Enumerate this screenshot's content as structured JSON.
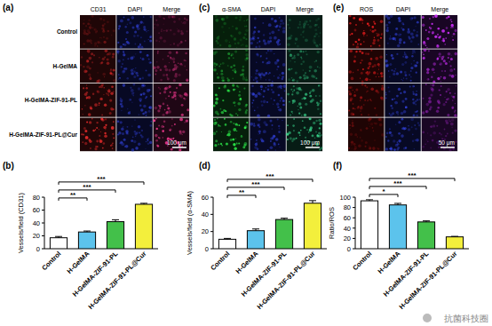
{
  "figure_panels": [
    {
      "label": "(a)",
      "columns": [
        "CD31",
        "DAPI",
        "Merge"
      ],
      "scale_bar": "100 μm"
    },
    {
      "label": "(c)",
      "columns": [
        "α-SMA",
        "DAPI",
        "Merge"
      ],
      "scale_bar": "100 μm"
    },
    {
      "label": "(e)",
      "columns": [
        "ROS",
        "DAPI",
        "Merge"
      ],
      "scale_bar": "50 μm"
    }
  ],
  "row_labels": [
    "Control",
    "H-GelMA",
    "H-GelMA-ZIF-91-PL",
    "H-GelMA-ZIF-91-PL@Cur"
  ],
  "watermark": "抗菌科技圈",
  "chart_data": [
    {
      "title": "(b)",
      "type": "bar",
      "y_label": "Vessels/field (CD31)",
      "categories": [
        "Control",
        "H-GelMA",
        "H-GelMA-ZIF-91-PL",
        "H-GelMA-ZIF-91-PL@Cur"
      ],
      "values": [
        17,
        26,
        42,
        69
      ],
      "errors": [
        2,
        1.5,
        3,
        1.5
      ],
      "colors": [
        "#ffffff",
        "#5cc3ec",
        "#43c04a",
        "#f3ef3c"
      ],
      "ylim": [
        0,
        80
      ],
      "yticks": [
        0,
        20,
        40,
        60,
        80
      ],
      "significance": [
        {
          "groups": [
            "Control",
            "H-GelMA"
          ],
          "label": "**"
        },
        {
          "groups": [
            "Control",
            "H-GelMA-ZIF-91-PL"
          ],
          "label": "***"
        },
        {
          "groups": [
            "Control",
            "H-GelMA-ZIF-91-PL@Cur"
          ],
          "label": "***"
        }
      ]
    },
    {
      "title": "(d)",
      "type": "bar",
      "y_label": "Vessels/field (α-SMA)",
      "categories": [
        "Control",
        "H-GelMA",
        "H-GelMA-ZIF-91-PL",
        "H-GelMA-ZIF-91-PL@Cur"
      ],
      "values": [
        11,
        21,
        34,
        53
      ],
      "errors": [
        1,
        2,
        1.5,
        3
      ],
      "colors": [
        "#ffffff",
        "#5cc3ec",
        "#43c04a",
        "#f3ef3c"
      ],
      "ylim": [
        0,
        60
      ],
      "yticks": [
        0,
        20,
        40,
        60
      ],
      "significance": [
        {
          "groups": [
            "Control",
            "H-GelMA"
          ],
          "label": "**"
        },
        {
          "groups": [
            "Control",
            "H-GelMA-ZIF-91-PL"
          ],
          "label": "***"
        },
        {
          "groups": [
            "Control",
            "H-GelMA-ZIF-91-PL@Cur"
          ],
          "label": "***"
        }
      ]
    },
    {
      "title": "(f)",
      "type": "bar",
      "y_label": "Ratio/ROS",
      "categories": [
        "Control",
        "H-GelMA",
        "H-GelMA-ZIF-91-PL",
        "H-GelMA-ZIF-91-PL@Cur"
      ],
      "values": [
        93,
        85,
        52,
        23
      ],
      "errors": [
        2,
        3,
        2,
        1
      ],
      "colors": [
        "#ffffff",
        "#5cc3ec",
        "#43c04a",
        "#f3ef3c"
      ],
      "ylim": [
        0,
        100
      ],
      "yticks": [
        0,
        20,
        40,
        60,
        80,
        100
      ],
      "significance": [
        {
          "groups": [
            "Control",
            "H-GelMA"
          ],
          "label": "*"
        },
        {
          "groups": [
            "Control",
            "H-GelMA-ZIF-91-PL"
          ],
          "label": "***"
        },
        {
          "groups": [
            "Control",
            "H-GelMA-ZIF-91-PL@Cur"
          ],
          "label": "***"
        }
      ]
    }
  ]
}
